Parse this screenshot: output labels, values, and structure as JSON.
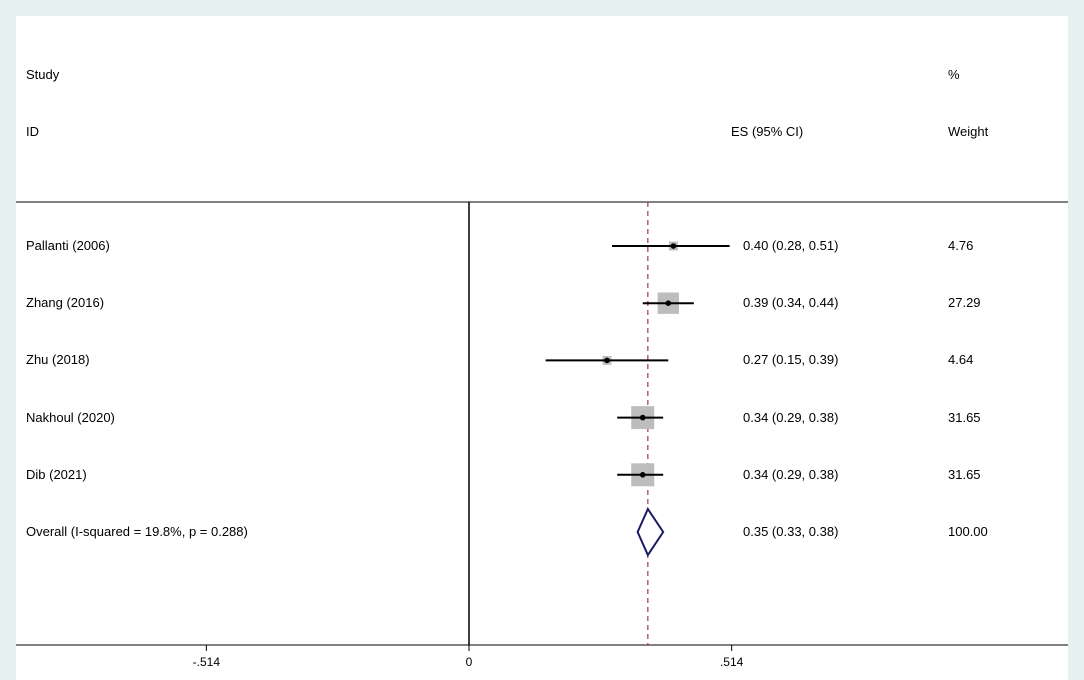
{
  "headers": {
    "study_line1": "Study",
    "study_line2": "ID",
    "es": "ES (95% CI)",
    "weight_line1": "%",
    "weight_line2": "Weight"
  },
  "chart_data": {
    "type": "forest",
    "null_value": 0,
    "pooled_estimate": 0.35,
    "xlim": [
      -0.9,
      1.15
    ],
    "x_ticks": [
      -0.514,
      0,
      0.514
    ],
    "x_tick_labels": [
      "-.514",
      "0",
      ".514"
    ],
    "studies": [
      {
        "study": "Pallanti (2006)",
        "es": 0.4,
        "lo": 0.28,
        "hi": 0.51,
        "es_ci": "0.40 (0.28, 0.51)",
        "weight": 4.76,
        "weight_label": "4.76"
      },
      {
        "study": "Zhang (2016)",
        "es": 0.39,
        "lo": 0.34,
        "hi": 0.44,
        "es_ci": "0.39 (0.34, 0.44)",
        "weight": 27.29,
        "weight_label": "27.29"
      },
      {
        "study": "Zhu (2018)",
        "es": 0.27,
        "lo": 0.15,
        "hi": 0.39,
        "es_ci": "0.27 (0.15, 0.39)",
        "weight": 4.64,
        "weight_label": "4.64"
      },
      {
        "study": "Nakhoul (2020)",
        "es": 0.34,
        "lo": 0.29,
        "hi": 0.38,
        "es_ci": "0.34 (0.29, 0.38)",
        "weight": 31.65,
        "weight_label": "31.65"
      },
      {
        "study": "Dib (2021)",
        "es": 0.34,
        "lo": 0.29,
        "hi": 0.38,
        "es_ci": "0.34 (0.29, 0.38)",
        "weight": 31.65,
        "weight_label": "31.65"
      }
    ],
    "overall": {
      "label": "Overall  (I-squared = 19.8%, p = 0.288)",
      "es": 0.35,
      "lo": 0.33,
      "hi": 0.38,
      "es_ci": "0.35 (0.33, 0.38)",
      "weight_label": "100.00"
    }
  }
}
